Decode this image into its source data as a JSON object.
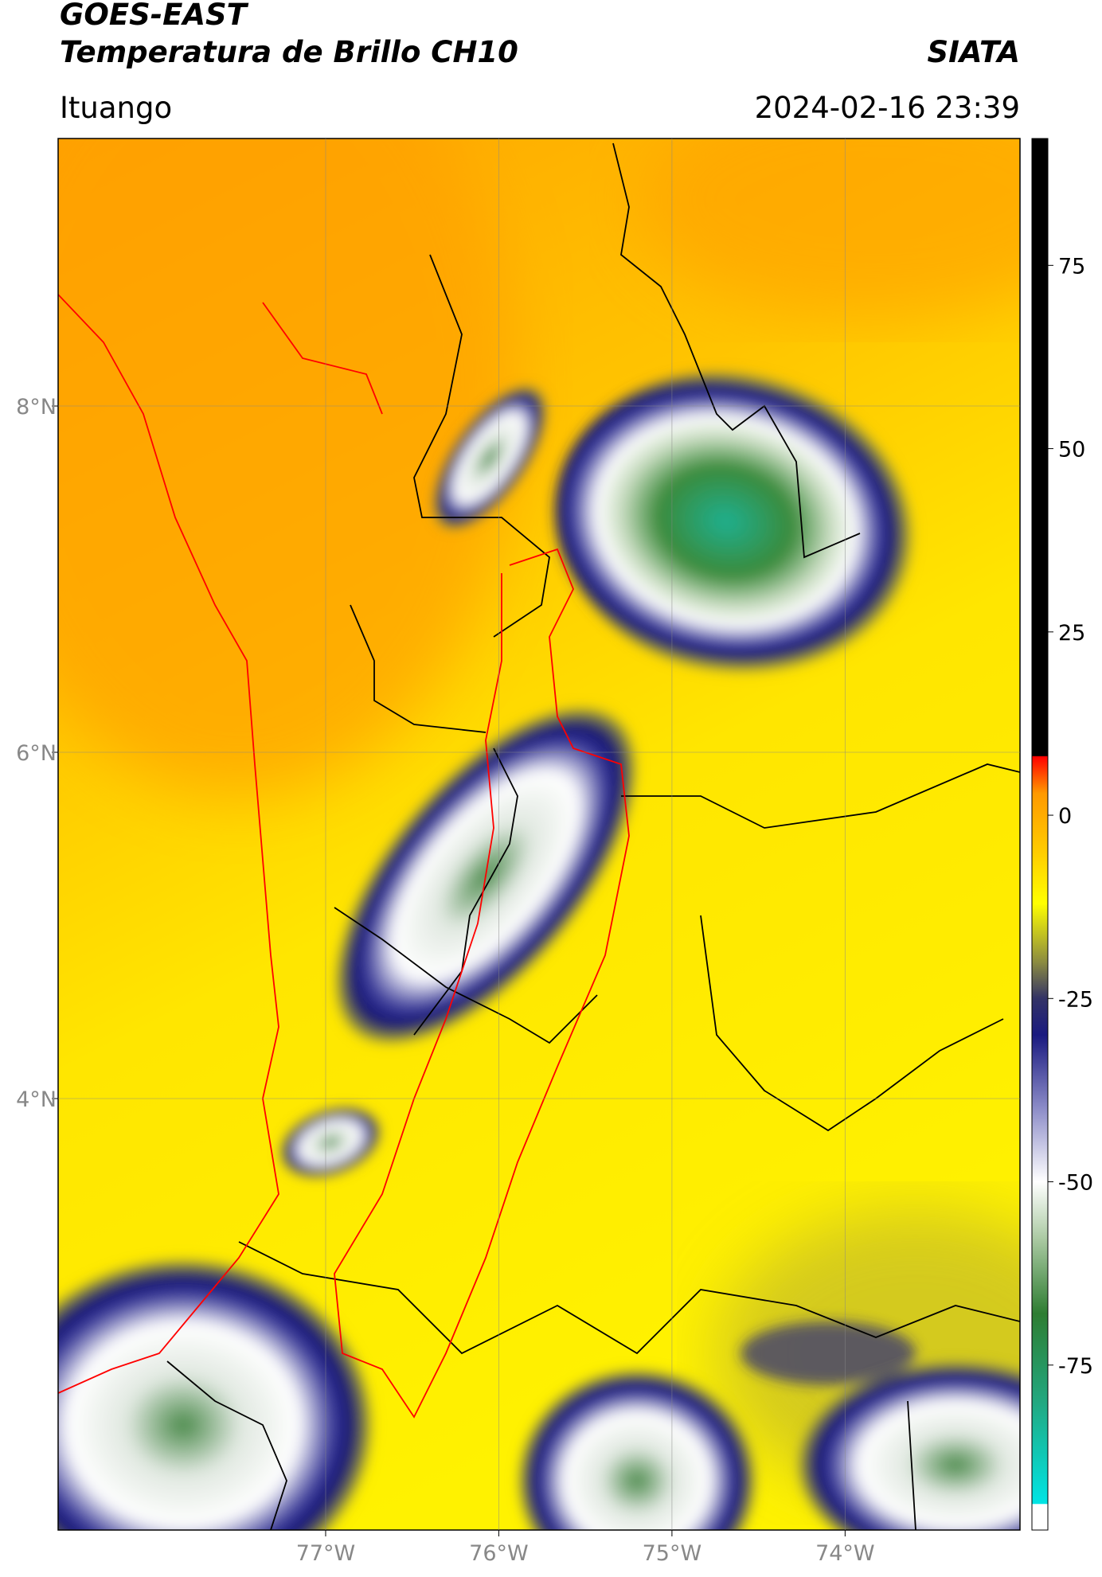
{
  "header": {
    "title": "GOES-EAST",
    "subtitle": "Temperatura de Brillo CH10",
    "source": "SIATA",
    "location": "Ituango",
    "timestamp": "2024-02-16 23:39"
  },
  "map": {
    "lonlim": [
      -78.545,
      -72.99
    ],
    "latlim": [
      1.508,
      9.545
    ],
    "lonticks": [
      {
        "value": -77,
        "label": "77°W"
      },
      {
        "value": -76,
        "label": "76°W"
      },
      {
        "value": -75,
        "label": "75°W"
      },
      {
        "value": -74,
        "label": "74°W"
      }
    ],
    "latticks": [
      {
        "value": 8,
        "label": "8°N"
      },
      {
        "value": 6,
        "label": "6°N"
      },
      {
        "value": 4,
        "label": "4°N"
      }
    ],
    "grid": true
  },
  "colorbar": {
    "clim": [
      -97.5,
      92.3
    ],
    "ticks": [
      75,
      50,
      25,
      0,
      -25,
      -50,
      -75
    ],
    "colormap": [
      {
        "value": -97.5,
        "color": "#ffffff"
      },
      {
        "value": -94,
        "color": "#ffffff"
      },
      {
        "value": -93.9,
        "color": "#00e5e5"
      },
      {
        "value": -80,
        "color": "#22a880"
      },
      {
        "value": -68,
        "color": "#2e7d32"
      },
      {
        "value": -58,
        "color": "#a8c8a0"
      },
      {
        "value": -50,
        "color": "#ffffff"
      },
      {
        "value": -40,
        "color": "#8c8cc8"
      },
      {
        "value": -30,
        "color": "#1a1a80"
      },
      {
        "value": -25,
        "color": "#333366"
      },
      {
        "value": -20,
        "color": "#8c8c40"
      },
      {
        "value": -12,
        "color": "#ffff00"
      },
      {
        "value": -5,
        "color": "#ffcc00"
      },
      {
        "value": 3,
        "color": "#ff9900"
      },
      {
        "value": 8,
        "color": "#ff0000"
      },
      {
        "value": 8.1,
        "color": "#000000"
      },
      {
        "value": 92.3,
        "color": "#000000"
      }
    ]
  }
}
